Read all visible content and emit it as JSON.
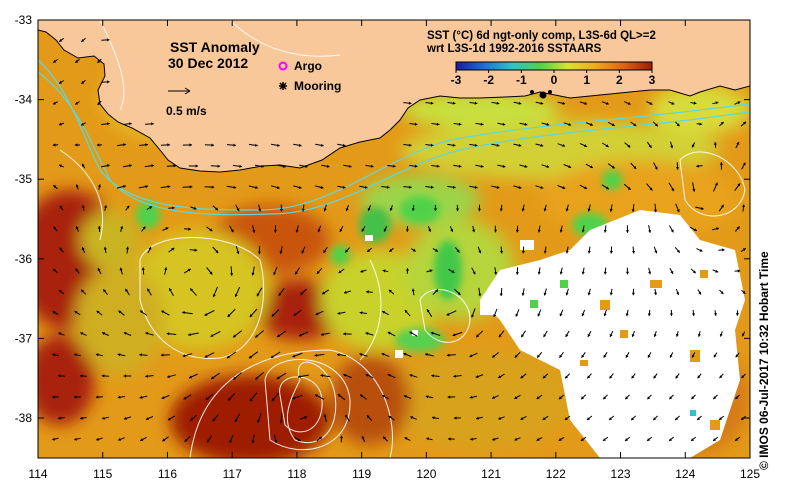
{
  "title": "SST Anomaly",
  "date": "30 Dec 2012",
  "legend": {
    "argo": "Argo",
    "mooring": "Mooring",
    "argo_color": "#ff00ff",
    "mooring_color": "#000000"
  },
  "scale_label": "0.5 m/s",
  "product_line1": "SST (°C) 6d ngt-only comp, L3S-6d QL>=2",
  "product_line2": "wrt L3S-1d 1992-2016 SSTAARS",
  "colorbar": {
    "ticks": [
      "-3",
      "-2",
      "-1",
      "0",
      "1",
      "2",
      "3"
    ],
    "colors": [
      "#1a1aa0",
      "#1c6fd8",
      "#2ec4c8",
      "#4fd24a",
      "#d8e42a",
      "#f2a81c",
      "#e0620e",
      "#a01a06"
    ]
  },
  "axes": {
    "x_ticks": [
      "114",
      "115",
      "116",
      "117",
      "118",
      "119",
      "120",
      "121",
      "122",
      "123",
      "124",
      "125"
    ],
    "y_ticks": [
      "-33",
      "-34",
      "-35",
      "-36",
      "-37",
      "-38"
    ]
  },
  "credit": "© IMOS 06-Jul-2017 10:32 Hobart Time",
  "colors": {
    "land": "#f9c89a",
    "no_data": "#ffffff",
    "contour": "#ffffff",
    "shelf_contour": "#5fd8d8",
    "background_anomaly": "#e8a21a"
  }
}
